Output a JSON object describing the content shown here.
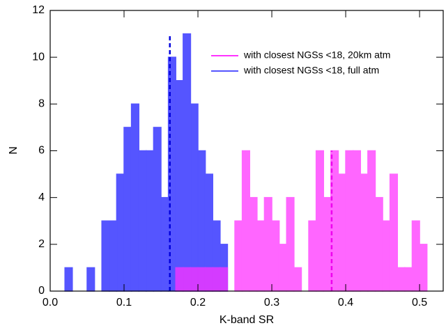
{
  "chart_data": {
    "type": "histogram",
    "xlabel": "K-band SR",
    "ylabel": "N",
    "xlim": [
      0,
      0.532
    ],
    "ylim": [
      0,
      12
    ],
    "xticks": [
      {
        "value": 0,
        "label": "0.0"
      },
      0.1,
      0.2,
      0.3,
      0.4,
      0.5
    ],
    "yticks": [
      0,
      2,
      4,
      6,
      8,
      10,
      12
    ],
    "legend": "upper right",
    "series": [
      {
        "name": "with closest NGSs <18, full atm",
        "color": "#5555ff",
        "median": 0.162,
        "bins": [
          0.02,
          0.03,
          0.04,
          0.05,
          0.06,
          0.07,
          0.08,
          0.09,
          0.1,
          0.11,
          0.12,
          0.13,
          0.14,
          0.15,
          0.16,
          0.17,
          0.18,
          0.19,
          0.2,
          0.21,
          0.22,
          0.23,
          0.24
        ],
        "values": [
          1,
          0,
          0,
          1,
          0,
          3,
          3,
          5,
          7,
          8,
          6,
          6,
          7,
          4,
          10,
          9,
          11,
          8,
          6,
          5,
          3,
          2
        ]
      },
      {
        "name": "with closest NGSs <18, 20km atm",
        "color": "#ff33ff",
        "median": 0.381,
        "bins": [
          0.17,
          0.18,
          0.19,
          0.2,
          0.21,
          0.22,
          0.23,
          0.24,
          0.25,
          0.26,
          0.27,
          0.28,
          0.29,
          0.3,
          0.31,
          0.32,
          0.33,
          0.34,
          0.35,
          0.36,
          0.37,
          0.38,
          0.39,
          0.4,
          0.41,
          0.42,
          0.43,
          0.44,
          0.45,
          0.46,
          0.47,
          0.48,
          0.49,
          0.5,
          0.51
        ],
        "values": [
          1,
          1,
          1,
          1,
          1,
          1,
          1,
          0,
          3,
          6,
          4,
          3,
          4,
          3,
          2,
          4,
          1,
          0,
          3,
          6,
          4,
          6,
          5,
          6,
          6,
          5,
          6,
          4,
          3,
          5,
          1,
          1,
          3,
          2
        ]
      }
    ]
  }
}
